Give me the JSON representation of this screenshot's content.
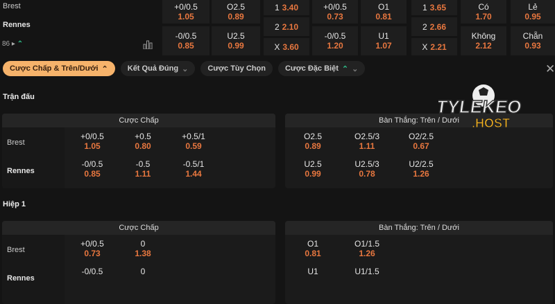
{
  "top": {
    "team1": "Brest",
    "team2": "Rennes",
    "minute": "86",
    "handicap": [
      {
        "line": "+0/0.5",
        "odd": "1.05"
      },
      {
        "line": "-0/0.5",
        "odd": "0.85"
      }
    ],
    "ou": [
      {
        "line": "O2.5",
        "odd": "0.89"
      },
      {
        "line": "U2.5",
        "odd": "0.99"
      }
    ],
    "x12": [
      {
        "k": "1",
        "odd": "3.40"
      },
      {
        "k": "2",
        "odd": "2.10"
      },
      {
        "k": "X",
        "odd": "3.60"
      }
    ],
    "h1_handicap": [
      {
        "line": "+0/0.5",
        "odd": "0.73"
      },
      {
        "line": "-0/0.5",
        "odd": "1.20"
      }
    ],
    "h1_ou": [
      {
        "line": "O1",
        "odd": "0.81"
      },
      {
        "line": "U1",
        "odd": "1.07"
      }
    ],
    "h1_x12": [
      {
        "k": "1",
        "odd": "3.65"
      },
      {
        "k": "2",
        "odd": "2.66"
      },
      {
        "k": "X",
        "odd": "2.21"
      }
    ],
    "btts": [
      {
        "k": "Có",
        "odd": "1.70"
      },
      {
        "k": "Không",
        "odd": "2.12"
      }
    ],
    "oddeven": [
      {
        "k": "Lẻ",
        "odd": "0.95"
      },
      {
        "k": "Chẵn",
        "odd": "0.93"
      }
    ]
  },
  "filters": [
    "Cược Chấp & Trên/Dưới",
    "Kết Quả Đúng",
    "Cược Tùy Chọn",
    "Cược Đặc Biệt"
  ],
  "sections": [
    {
      "title": "Trận đấu",
      "hcap": {
        "title": "Cược Chấp",
        "team1": "Brest",
        "team2": "Rennes",
        "cols": [
          [
            {
              "l": "+0/0.5",
              "o": "1.05"
            },
            {
              "l": "-0/0.5",
              "o": "0.85"
            }
          ],
          [
            {
              "l": "+0.5",
              "o": "0.80"
            },
            {
              "l": "-0.5",
              "o": "1.11"
            }
          ],
          [
            {
              "l": "+0.5/1",
              "o": "0.59"
            },
            {
              "l": "-0.5/1",
              "o": "1.44"
            }
          ]
        ]
      },
      "ou": {
        "title": "Bàn Thắng: Trên / Dưới",
        "cols": [
          [
            {
              "l": "O2.5",
              "o": "0.89"
            },
            {
              "l": "U2.5",
              "o": "0.99"
            }
          ],
          [
            {
              "l": "O2.5/3",
              "o": "1.11"
            },
            {
              "l": "U2.5/3",
              "o": "0.78"
            }
          ],
          [
            {
              "l": "O2/2.5",
              "o": "0.67"
            },
            {
              "l": "U2/2.5",
              "o": "1.26"
            }
          ]
        ]
      }
    },
    {
      "title": "Hiệp 1",
      "hcap": {
        "title": "Cược Chấp",
        "team1": "Brest",
        "team2": "Rennes",
        "cols": [
          [
            {
              "l": "+0/0.5",
              "o": "0.73"
            },
            {
              "l": "-0/0.5",
              "o": ""
            }
          ],
          [
            {
              "l": "0",
              "o": "1.38"
            },
            {
              "l": "0",
              "o": ""
            }
          ]
        ]
      },
      "ou": {
        "title": "Bàn Thắng: Trên / Dưới",
        "cols": [
          [
            {
              "l": "O1",
              "o": "0.81"
            },
            {
              "l": "U1",
              "o": ""
            }
          ],
          [
            {
              "l": "O1/1.5",
              "o": "1.26"
            },
            {
              "l": "U1/1.5",
              "o": ""
            }
          ]
        ]
      }
    }
  ],
  "watermark": "TYLEKEO .HOST",
  "colors": {
    "odd": "#e8773f",
    "active_chip": "#f6b36b",
    "up_arrow": "#2fbf8a"
  }
}
